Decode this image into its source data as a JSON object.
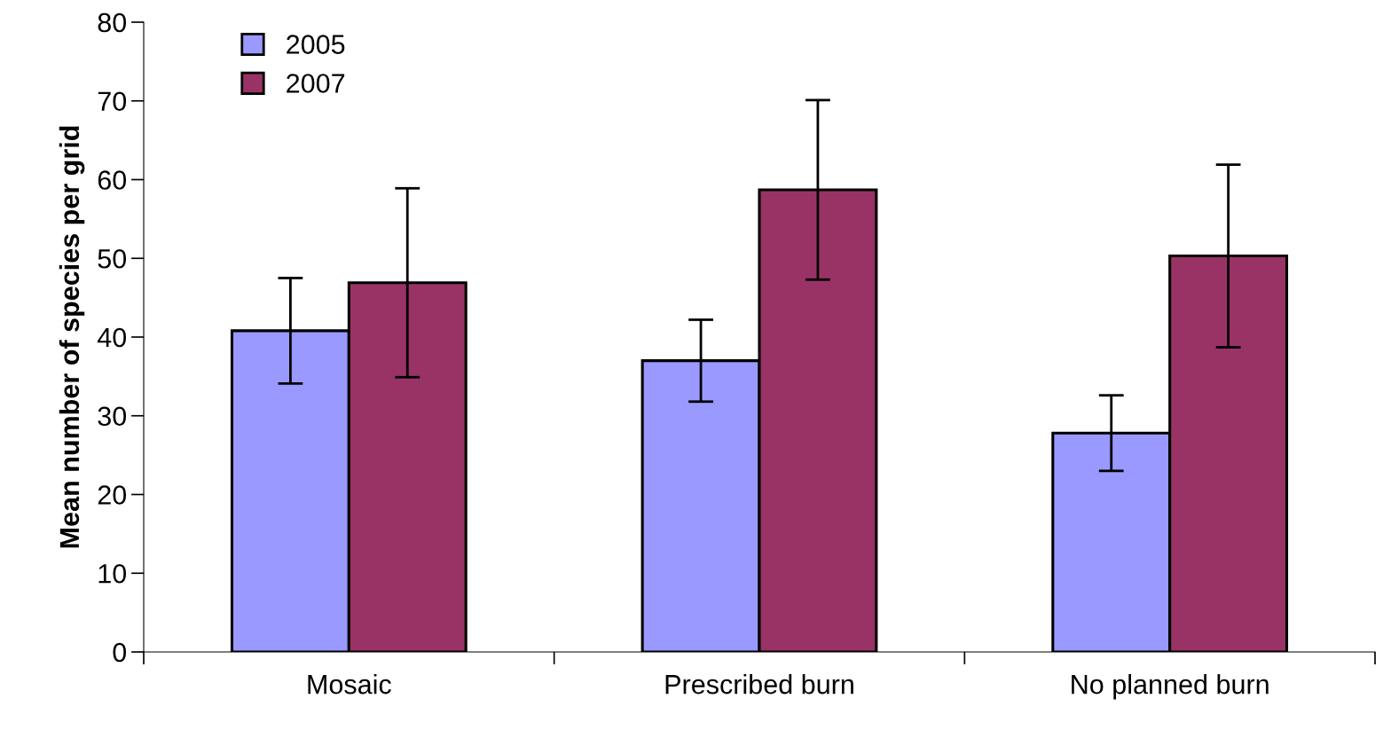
{
  "chart_data": {
    "type": "bar",
    "ylabel": "Mean number of species per grid",
    "categories": [
      "Mosaic",
      "Prescribed burn",
      "No planned burn"
    ],
    "series": [
      {
        "name": "2005",
        "color": "#9999ff",
        "values": [
          40.8,
          37.0,
          27.8
        ],
        "errors": [
          6.7,
          5.2,
          4.8
        ]
      },
      {
        "name": "2007",
        "color": "#993366",
        "values": [
          46.9,
          58.7,
          50.3
        ],
        "errors": [
          12.0,
          11.4,
          11.6
        ]
      }
    ],
    "ylim": [
      0,
      80
    ],
    "yticks": [
      0,
      10,
      20,
      30,
      40,
      50,
      60,
      70,
      80
    ],
    "grid": false,
    "legend": "top left"
  }
}
